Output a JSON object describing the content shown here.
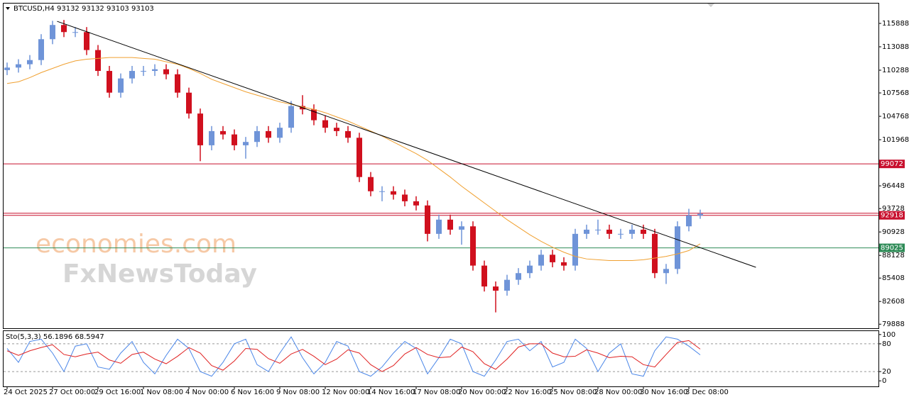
{
  "chart_data": [
    {
      "type": "candlestick",
      "title": "BTCUSD,H4",
      "header_values": [
        93132,
        93132,
        93103,
        93103
      ],
      "categories": [
        "24 Oct 2025",
        null,
        null,
        null,
        "27 Oct 00:00",
        null,
        null,
        null,
        "29 Oct 16:00",
        null,
        null,
        null,
        "1 Nov 08:00",
        null,
        null,
        null,
        "4 Nov 00:00",
        null,
        null,
        null,
        "6 Nov 16:00",
        null,
        null,
        null,
        "9 Nov 08:00",
        null,
        null,
        null,
        "12 Nov 00:00",
        null,
        null,
        null,
        "14 Nov 16:00",
        null,
        null,
        null,
        "17 Nov 08:00",
        null,
        null,
        null,
        "20 Nov 00:00",
        null,
        null,
        null,
        "22 Nov 16:00",
        null,
        null,
        null,
        "25 Nov 08:00",
        null,
        null,
        null,
        "28 Nov 00:00",
        null,
        null,
        null,
        "30 Nov 16:00",
        null,
        null,
        null,
        "3 Dec 08:00",
        null
      ],
      "open": [
        110300,
        110600,
        111000,
        111500,
        114000,
        115700,
        114850,
        114850,
        112700,
        110200,
        107600,
        109300,
        110200,
        110200,
        110400,
        109800,
        107600,
        105100,
        101300,
        103000,
        102600,
        101300,
        101700,
        103000,
        102200,
        103400,
        106000,
        105600,
        104300,
        103400,
        103000,
        102200,
        97500,
        95800,
        95800,
        95400,
        94600,
        94100,
        90700,
        92400,
        91200,
        91600,
        86900,
        84400,
        83900,
        85200,
        86000,
        86900,
        88200,
        87300,
        86900,
        90700,
        91200,
        91200,
        90700,
        90700,
        91200,
        90700,
        86000,
        86500,
        91600,
        92900
      ],
      "high": [
        111200,
        111600,
        112100,
        114600,
        116200,
        116300,
        115450,
        115450,
        113300,
        110800,
        109900,
        110800,
        110800,
        111000,
        111000,
        110400,
        108200,
        105700,
        103600,
        103600,
        103200,
        102300,
        103600,
        103600,
        104000,
        106600,
        107300,
        106200,
        104900,
        104000,
        103600,
        102800,
        98100,
        96400,
        96400,
        96000,
        95200,
        94700,
        93000,
        93000,
        92200,
        92200,
        87500,
        85000,
        85800,
        86600,
        87500,
        88800,
        88800,
        87900,
        91300,
        91800,
        92400,
        91800,
        91300,
        91800,
        91800,
        91300,
        87100,
        92200,
        93700,
        93600
      ],
      "low": [
        109700,
        110000,
        110400,
        110900,
        113400,
        114250,
        114250,
        112100,
        109600,
        107000,
        107000,
        108700,
        109600,
        109600,
        109200,
        107000,
        104500,
        99400,
        100700,
        102000,
        100700,
        99700,
        101100,
        101600,
        101600,
        102800,
        105000,
        103700,
        102800,
        102400,
        101600,
        96900,
        95200,
        94600,
        94800,
        94000,
        93500,
        89800,
        90100,
        90600,
        89400,
        86300,
        83800,
        81300,
        83300,
        84600,
        85400,
        86300,
        86700,
        86300,
        86300,
        90100,
        90600,
        90100,
        90100,
        90100,
        90100,
        85400,
        84700,
        85900,
        91000,
        92500
      ],
      "close": [
        110600,
        111000,
        111500,
        114000,
        115700,
        114850,
        114850,
        112700,
        110200,
        107600,
        109300,
        110200,
        110200,
        110400,
        109800,
        107600,
        105100,
        101300,
        103000,
        102600,
        101300,
        101700,
        103000,
        102200,
        103400,
        106000,
        105600,
        104300,
        103400,
        103000,
        102200,
        97500,
        95800,
        95800,
        95400,
        94600,
        94100,
        90700,
        92400,
        91200,
        91600,
        86900,
        84400,
        83900,
        85200,
        86000,
        86900,
        88200,
        87300,
        86900,
        90700,
        91200,
        91200,
        90700,
        90700,
        91200,
        90700,
        86000,
        86500,
        91600,
        92900,
        93103
      ],
      "up_color": "#6f94d8",
      "down_color": "#d0101e",
      "moving_average": {
        "color": "#f0a030",
        "values": [
          108700,
          108900,
          109400,
          110000,
          110500,
          111000,
          111400,
          111600,
          111700,
          111800,
          111800,
          111800,
          111700,
          111600,
          111300,
          111000,
          110500,
          109900,
          109200,
          108700,
          108200,
          107700,
          107300,
          106900,
          106500,
          106200,
          105900,
          105600,
          105200,
          104700,
          104200,
          103600,
          103000,
          102400,
          101700,
          101000,
          100300,
          99500,
          98500,
          97500,
          96400,
          95400,
          94400,
          93400,
          92400,
          91500,
          90600,
          89800,
          89100,
          88500,
          88000,
          87700,
          87600,
          87500,
          87500,
          87500,
          87600,
          87800,
          88000,
          88300,
          88700,
          89500
        ]
      },
      "trendline": {
        "color": "#000000",
        "x": [
          4.4,
          65.9
        ],
        "y": [
          116140,
          86700
        ]
      },
      "levels": [
        {
          "value": 99072,
          "color": "#c8102e"
        },
        {
          "value": 92918,
          "color": "#c8102e"
        },
        {
          "value": 89025,
          "color": "#2e8b57"
        }
      ],
      "ylim": [
        79400,
        118350
      ],
      "yticks": [
        115888,
        113088,
        110288,
        107568,
        104768,
        101968,
        96448,
        93728,
        90928,
        88128,
        85408,
        82608,
        79888
      ],
      "watermarks": [
        "economies.com",
        "FxNewsToday"
      ]
    },
    {
      "type": "line",
      "title": "Sto(5,3,3)",
      "series": [
        {
          "color": "#4a86e8",
          "values": [
            70,
            40,
            85,
            90,
            60,
            20,
            75,
            80,
            30,
            25,
            60,
            85,
            40,
            15,
            55,
            90,
            70,
            20,
            10,
            40,
            80,
            90,
            35,
            20,
            60,
            95,
            50,
            15,
            40,
            85,
            75,
            20,
            10,
            30,
            60,
            85,
            70,
            15,
            50,
            90,
            80,
            20,
            10,
            45,
            85,
            90,
            65,
            85,
            30,
            40,
            90,
            70,
            20,
            60,
            80,
            15,
            10,
            65,
            95,
            90,
            75,
            56.1896
          ]
        },
        {
          "color": "#e02020",
          "values": [
            65,
            55,
            65,
            72,
            78,
            57,
            52,
            58,
            62,
            45,
            38,
            57,
            62,
            47,
            37,
            53,
            72,
            60,
            33,
            23,
            43,
            70,
            68,
            48,
            38,
            58,
            68,
            53,
            35,
            47,
            67,
            60,
            35,
            20,
            33,
            58,
            72,
            57,
            50,
            52,
            73,
            63,
            37,
            25,
            47,
            73,
            80,
            80,
            60,
            52,
            53,
            67,
            60,
            50,
            53,
            52,
            35,
            30,
            57,
            83,
            87,
            68.5947
          ]
        }
      ],
      "ylim": [
        -12,
        109
      ],
      "yticks": [
        0,
        20,
        80,
        100
      ],
      "levels": [
        20,
        80
      ]
    }
  ]
}
